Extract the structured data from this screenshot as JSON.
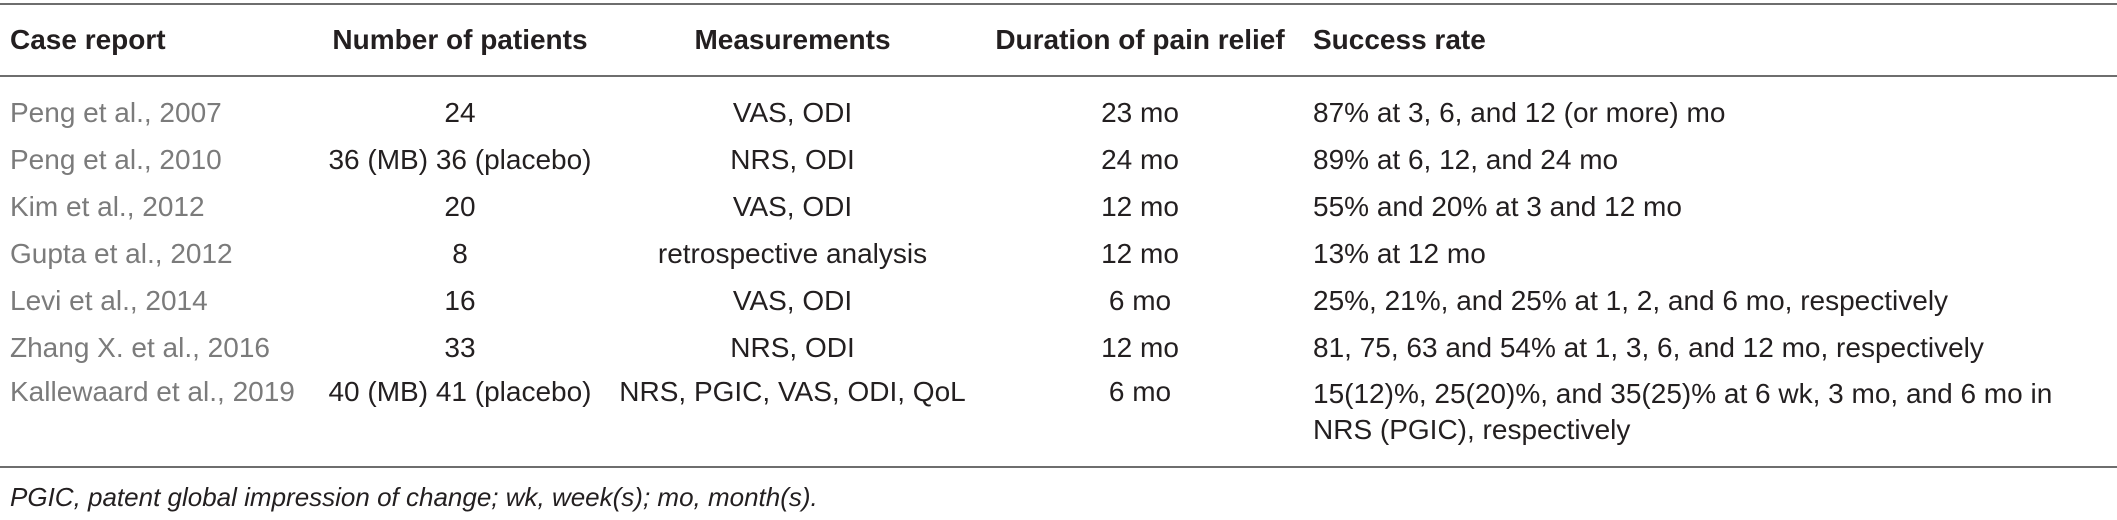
{
  "table": {
    "headers": [
      "Case report",
      "Number of patients",
      "Measurements",
      "Duration of pain relief",
      "Success rate"
    ],
    "rows": [
      [
        "Peng et al., 2007",
        "24",
        "VAS, ODI",
        "23 mo",
        "87% at 3, 6, and 12 (or more) mo"
      ],
      [
        "Peng et al., 2010",
        "36 (MB) 36 (placebo)",
        "NRS, ODI",
        "24 mo",
        "89% at 6, 12, and 24 mo"
      ],
      [
        "Kim et al., 2012",
        "20",
        "VAS, ODI",
        "12 mo",
        "55% and 20% at 3 and 12 mo"
      ],
      [
        "Gupta et al., 2012",
        "8",
        "retrospective analysis",
        "12 mo",
        "13% at 12 mo"
      ],
      [
        "Levi et al., 2014",
        "16",
        "VAS, ODI",
        "6 mo",
        "25%, 21%, and 25% at 1, 2, and 6 mo, respectively"
      ],
      [
        "Zhang X. et al., 2016",
        "33",
        "NRS, ODI",
        "12 mo",
        "81, 75, 63 and 54% at 1, 3, 6, and 12 mo, respectively"
      ],
      [
        "Kallewaard et al., 2019",
        "40 (MB) 41 (placebo)",
        "NRS, PGIC, VAS, ODI, QoL",
        "6 mo",
        "15(12)%, 25(20)%, and 35(25)% at 6 wk, 3 mo, and 6 mo in NRS (PGIC), respectively"
      ]
    ]
  },
  "footnote": "PGIC, patent global impression of change; wk, week(s); mo, month(s)."
}
